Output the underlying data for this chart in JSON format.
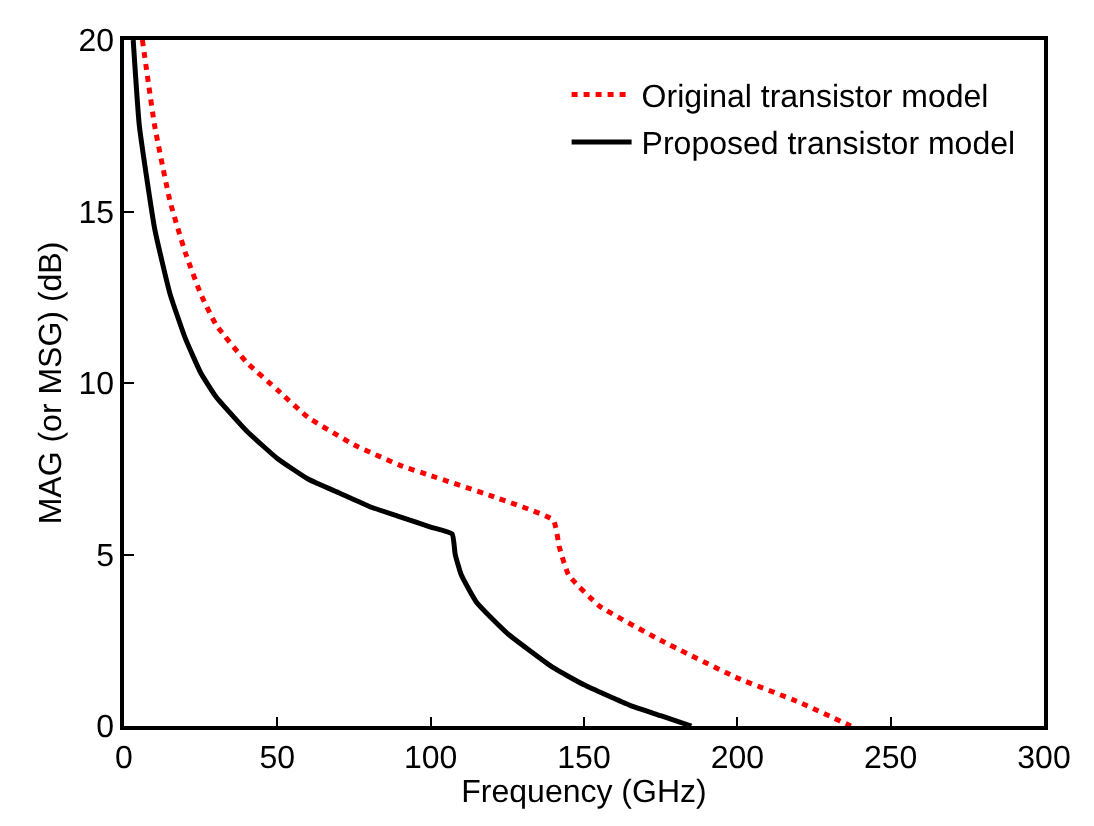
{
  "chart_data": {
    "type": "line",
    "xlabel": "Frequency (GHz)",
    "ylabel": "MAG (or MSG) (dB)",
    "xlim": [
      0,
      300
    ],
    "ylim": [
      0,
      20
    ],
    "xticks": [
      0,
      50,
      100,
      150,
      200,
      250,
      300
    ],
    "yticks": [
      0,
      5,
      10,
      15,
      20
    ],
    "legend": "top right",
    "marker": "none",
    "series": [
      {
        "name": "Original transistor model",
        "color": "#ff0000",
        "line_style": "dotted",
        "x": [
          6,
          10,
          15,
          20,
          25,
          30,
          40,
          50,
          60,
          75,
          90,
          100,
          120,
          140,
          142,
          145,
          155,
          175,
          200,
          220,
          237
        ],
        "values": [
          20,
          17.5,
          15.3,
          13.8,
          12.6,
          11.7,
          10.6,
          9.8,
          9.0,
          8.2,
          7.6,
          7.3,
          6.7,
          6.0,
          5.2,
          4.4,
          3.5,
          2.5,
          1.4,
          0.7,
          0
        ]
      },
      {
        "name": "Proposed transistor model",
        "color": "#000000",
        "line_style": "solid",
        "x": [
          3,
          5,
          10,
          15,
          20,
          25,
          30,
          40,
          50,
          60,
          70,
          80,
          90,
          100,
          107,
          108,
          110,
          115,
          125,
          140,
          150,
          165,
          175,
          185
        ],
        "values": [
          20,
          17.5,
          14.5,
          12.6,
          11.3,
          10.3,
          9.6,
          8.6,
          7.8,
          7.2,
          6.8,
          6.4,
          6.1,
          5.8,
          5.6,
          5.0,
          4.4,
          3.6,
          2.7,
          1.7,
          1.2,
          0.6,
          0.3,
          0
        ]
      }
    ]
  }
}
